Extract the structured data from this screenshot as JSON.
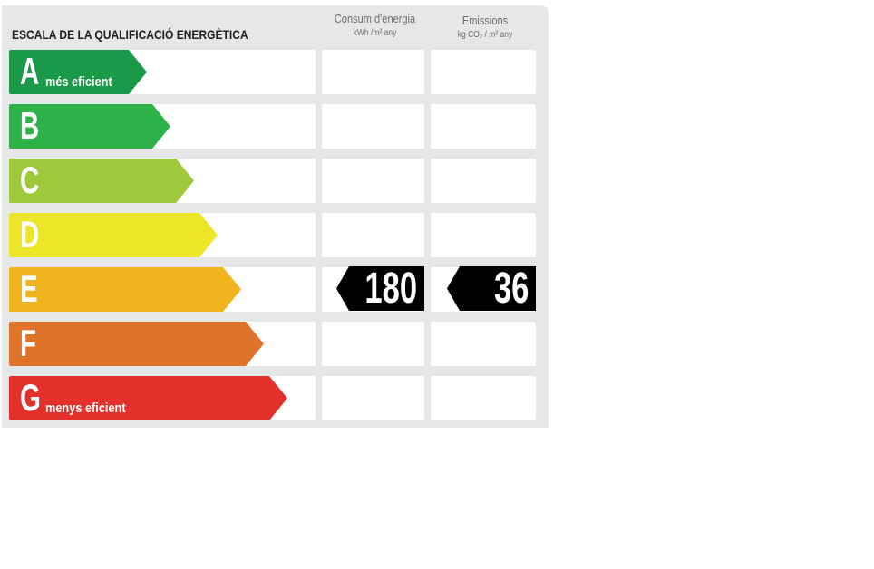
{
  "title": "ESCALA DE LA QUALIFICACIÓ ENERGÈTICA",
  "columns": {
    "energy": {
      "label": "Consum d'energia",
      "unit": "kWh /m² any"
    },
    "emissions": {
      "label": "Emissions",
      "unit": "kg CO₂ / m² any"
    }
  },
  "classes": [
    {
      "letter": "A",
      "caption": "més eficient",
      "color": "#1a9a48"
    },
    {
      "letter": "B",
      "caption": "",
      "color": "#2db24a"
    },
    {
      "letter": "C",
      "caption": "",
      "color": "#9dc93b"
    },
    {
      "letter": "D",
      "caption": "",
      "color": "#ede527"
    },
    {
      "letter": "E",
      "caption": "",
      "color": "#f0b41f"
    },
    {
      "letter": "F",
      "caption": "",
      "color": "#e0732a"
    },
    {
      "letter": "G",
      "caption": "menys eficient",
      "color": "#e3302a"
    }
  ],
  "rating": {
    "class": "E",
    "energy_value": "180",
    "emissions_value": "36",
    "marker_color": "#000000"
  }
}
